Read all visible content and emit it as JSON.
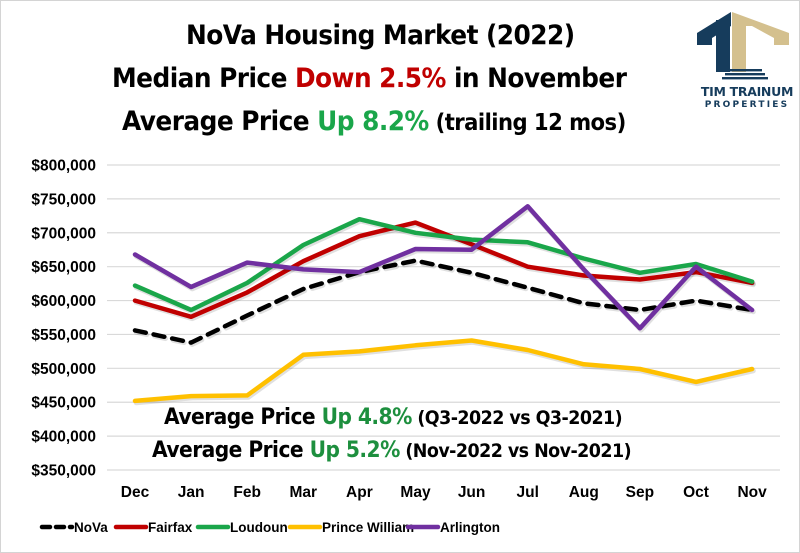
{
  "header": {
    "title_line1": "NoVa Housing Market (2022)",
    "title_line2_prefix": "Median Price ",
    "title_line2_highlight": "Down 2.5%",
    "title_line2_suffix": " in November",
    "title_line3_prefix": "Average Price ",
    "title_line3_highlight": "Up 8.2%",
    "title_line3_suffix": " (trailing 12 mos)"
  },
  "logo": {
    "name_line1": "TIM TRAINUM",
    "name_line2": "PROPERTIES",
    "icon": "house-columns-logo-icon",
    "colors": {
      "navy": "#163c5c",
      "tan": "#d4c08e"
    }
  },
  "annotations": [
    {
      "prefix": "Average Price ",
      "highlight": "Up 4.8%",
      "suffix": " (Q3-2022 vs Q3-2021)"
    },
    {
      "prefix": "Average Price ",
      "highlight": "Up 5.2%",
      "suffix": " (Nov-2022 vs Nov-2021)"
    }
  ],
  "colors": {
    "down": "#c00000",
    "up": "#1aa64a",
    "gridline": "#d9d9d9"
  },
  "chart_data": {
    "type": "line",
    "title": "NoVa Housing Market (2022)",
    "xlabel": "",
    "ylabel": "",
    "categories": [
      "Dec",
      "Jan",
      "Feb",
      "Mar",
      "Apr",
      "May",
      "Jun",
      "Jul",
      "Aug",
      "Sep",
      "Oct",
      "Nov"
    ],
    "ylim": [
      350000,
      800000
    ],
    "yticks": [
      800000,
      750000,
      700000,
      650000,
      600000,
      550000,
      500000,
      450000,
      400000,
      350000
    ],
    "ytick_labels": [
      "$800,000",
      "$750,000",
      "$700,000",
      "$650,000",
      "$600,000",
      "$550,000",
      "$500,000",
      "$450,000",
      "$400,000",
      "$350,000"
    ],
    "grid": true,
    "legend_position": "bottom",
    "series": [
      {
        "name": "NoVa",
        "color": "#000000",
        "dashed": true,
        "values": [
          556000,
          538000,
          578000,
          617000,
          642000,
          659000,
          641000,
          619000,
          596000,
          586000,
          600000,
          586000
        ]
      },
      {
        "name": "Fairfax",
        "color": "#c00000",
        "dashed": false,
        "values": [
          600000,
          576000,
          612000,
          658000,
          695000,
          715000,
          683000,
          650000,
          637000,
          631000,
          642000,
          626000
        ]
      },
      {
        "name": "Loudoun",
        "color": "#1aa64a",
        "dashed": false,
        "values": [
          622000,
          586000,
          626000,
          682000,
          720000,
          700000,
          690000,
          686000,
          662000,
          641000,
          654000,
          628000
        ]
      },
      {
        "name": "Prince William",
        "color": "#ffc000",
        "dashed": false,
        "values": [
          452000,
          459000,
          460000,
          520000,
          525000,
          534000,
          541000,
          527000,
          506000,
          499000,
          480000,
          499000
        ]
      },
      {
        "name": "Arlington",
        "color": "#7030a0",
        "dashed": false,
        "values": [
          668000,
          620000,
          656000,
          646000,
          642000,
          676000,
          675000,
          739000,
          646000,
          559000,
          650000,
          586000
        ]
      }
    ]
  }
}
